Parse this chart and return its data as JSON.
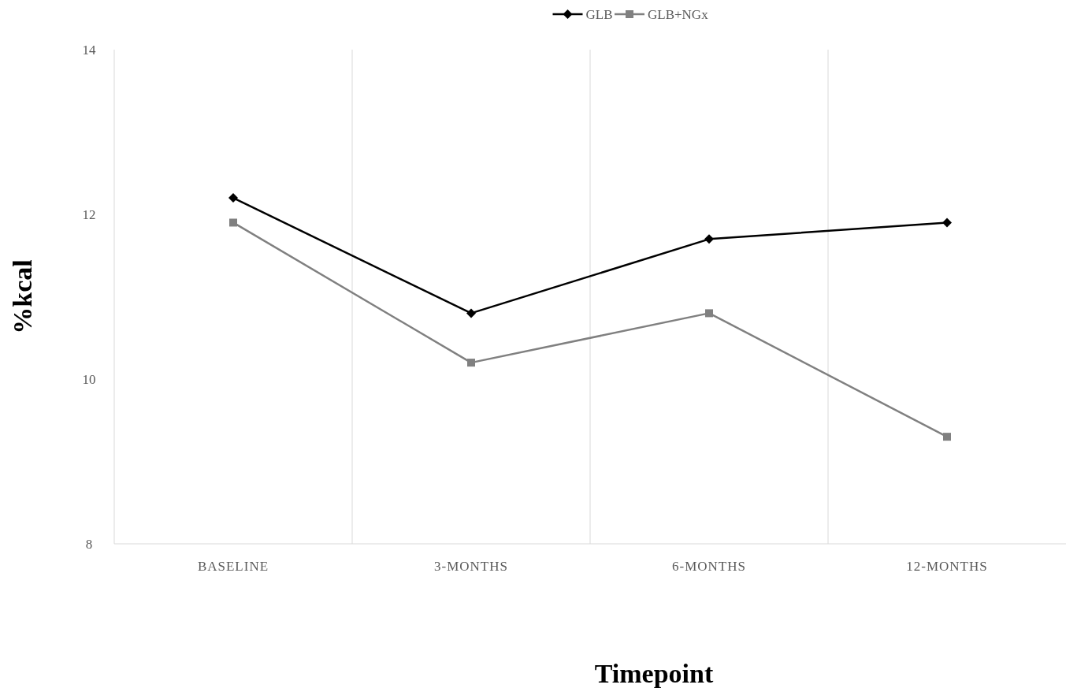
{
  "chart_data": {
    "type": "line",
    "xlabel": "Timepoint",
    "ylabel": "%kcal",
    "categories": [
      "BASELINE",
      "3-MONTHS",
      "6-MONTHS",
      "12-MONTHS"
    ],
    "series": [
      {
        "name": "GLB",
        "color": "#000000",
        "marker": "diamond",
        "values": [
          12.2,
          10.8,
          11.7,
          11.9
        ]
      },
      {
        "name": "GLB+NGx",
        "color": "#808080",
        "marker": "square",
        "values": [
          11.9,
          10.2,
          10.8,
          9.3
        ]
      }
    ],
    "ylim": [
      8,
      14
    ],
    "yticks": [
      8,
      10,
      12,
      14
    ],
    "grid": "x",
    "legend": "top"
  }
}
